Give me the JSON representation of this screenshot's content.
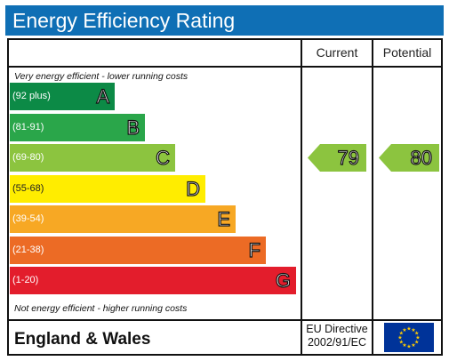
{
  "title": "Energy Efficiency Rating",
  "columns": {
    "current": "Current",
    "potential": "Potential"
  },
  "notes": {
    "top": "Very energy efficient - lower running costs",
    "bottom": "Not energy efficient - higher running costs"
  },
  "chart_data": {
    "type": "bar",
    "bands": [
      {
        "letter": "A",
        "range": "(92 plus)",
        "color": "#0c8a46"
      },
      {
        "letter": "B",
        "range": "(81-91)",
        "color": "#2aa64a"
      },
      {
        "letter": "C",
        "range": "(69-80)",
        "color": "#8cc43f"
      },
      {
        "letter": "D",
        "range": "(55-68)",
        "color": "#ffed00"
      },
      {
        "letter": "E",
        "range": "(39-54)",
        "color": "#f7a824"
      },
      {
        "letter": "F",
        "range": "(21-38)",
        "color": "#ec6b25"
      },
      {
        "letter": "G",
        "range": "(1-20)",
        "color": "#e31d2c"
      }
    ],
    "current": {
      "value": 79,
      "band": "C"
    },
    "potential": {
      "value": 80,
      "band": "C"
    }
  },
  "footer": {
    "region": "England & Wales",
    "directive_line1": "EU Directive",
    "directive_line2": "2002/91/EC"
  },
  "colors": {
    "title_bg": "#0f6fb5",
    "eu_flag": "#003399",
    "eu_star": "#ffcc00"
  }
}
